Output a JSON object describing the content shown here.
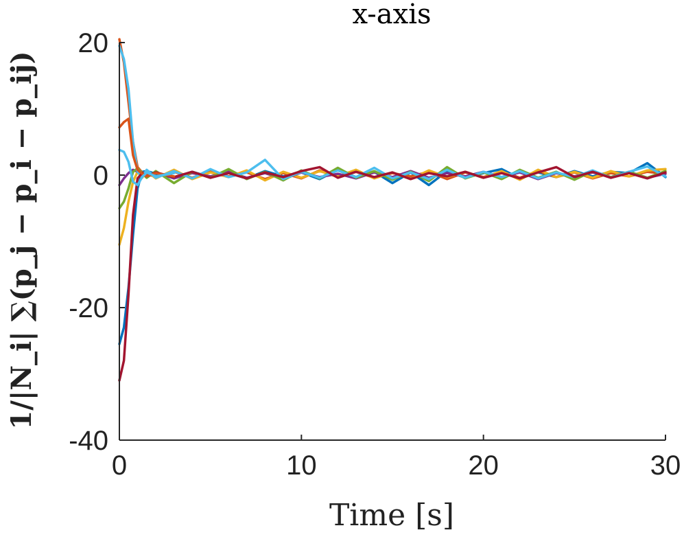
{
  "chart_data": {
    "type": "line",
    "title": "x-axis",
    "xlabel": "Time [s]",
    "ylabel": "1/|N_i| ∑(p_j − p_i − p_ij)",
    "xlim": [
      0,
      30
    ],
    "ylim": [
      -40,
      20
    ],
    "xticks": [
      0,
      10,
      20,
      30
    ],
    "yticks": [
      -40,
      -20,
      0,
      20
    ],
    "xtick_labels": [
      "0",
      "10",
      "20",
      "30"
    ],
    "ytick_labels": [
      "-40",
      "-20",
      "0",
      "20"
    ],
    "grid": false,
    "legend": "none",
    "series": [
      {
        "color": "#0072BD",
        "x": [
          0,
          0.25,
          0.5,
          0.75,
          1.0,
          1.25,
          1.5,
          2.0,
          3,
          4,
          5,
          6,
          7,
          8,
          9,
          10,
          11,
          12,
          13,
          14,
          15,
          16,
          17,
          18,
          19,
          20,
          21,
          22,
          23,
          24,
          25,
          26,
          27,
          28,
          29,
          30
        ],
        "y": [
          -25.5,
          -23,
          -17,
          -9,
          -2,
          0.5,
          0.6,
          0.2,
          -0.4,
          0.5,
          -0.3,
          0.3,
          -0.5,
          0.6,
          -0.2,
          0.4,
          -0.6,
          0.8,
          -0.3,
          0.5,
          -1.2,
          0.4,
          -1.5,
          0.6,
          -0.4,
          0.3,
          0.9,
          -0.5,
          0.4,
          -0.3,
          0.6,
          -0.2,
          0.5,
          0.3,
          1.8,
          -0.3
        ]
      },
      {
        "color": "#D95319",
        "x": [
          0,
          0.25,
          0.5,
          0.75,
          1.0,
          1.25,
          1.5,
          2.0,
          3,
          4,
          5,
          6,
          7,
          8,
          9,
          10,
          11,
          12,
          13,
          14,
          15,
          16,
          17,
          18,
          19,
          20,
          21,
          22,
          23,
          24,
          25,
          26,
          27,
          28,
          29,
          30
        ],
        "y": [
          20.5,
          17,
          11,
          5,
          1.2,
          0.4,
          0.2,
          -0.3,
          0.5,
          -0.4,
          0.6,
          -0.2,
          0.4,
          -0.6,
          0.3,
          -0.5,
          0.7,
          -0.3,
          0.5,
          -0.4,
          0.3,
          -0.2,
          0.5,
          -0.6,
          0.4,
          -0.3,
          0.5,
          -0.4,
          0.6,
          -0.3,
          0.4,
          -0.5,
          0.3,
          -0.2,
          0.5,
          0.2
        ]
      },
      {
        "color": "#EDB120",
        "x": [
          0,
          0.25,
          0.5,
          0.75,
          1.0,
          1.25,
          1.5,
          2.0,
          3,
          4,
          5,
          6,
          7,
          8,
          9,
          10,
          11,
          12,
          13,
          14,
          15,
          16,
          17,
          18,
          19,
          20,
          21,
          22,
          23,
          24,
          25,
          26,
          27,
          28,
          29,
          30
        ],
        "y": [
          -10.5,
          -8,
          -4,
          -1,
          0.5,
          -0.4,
          0.6,
          -0.5,
          0.8,
          -0.6,
          0.4,
          -0.3,
          0.7,
          -0.8,
          0.5,
          -0.4,
          0.6,
          -0.2,
          0.8,
          -0.5,
          0.4,
          -0.6,
          0.7,
          -0.3,
          0.5,
          -0.4,
          0.6,
          -0.7,
          0.8,
          -0.3,
          0.5,
          -0.4,
          0.6,
          -0.2,
          0.7,
          0.9
        ]
      },
      {
        "color": "#7E2F8E",
        "x": [
          0,
          0.25,
          0.5,
          0.75,
          1.0,
          1.25,
          1.5,
          2.0,
          3,
          4,
          5,
          6,
          7,
          8,
          9,
          10,
          11,
          12,
          13,
          14,
          15,
          16,
          17,
          18,
          19,
          20,
          21,
          22,
          23,
          24,
          25,
          26,
          27,
          28,
          29,
          30
        ],
        "y": [
          -1.5,
          -0.5,
          0.3,
          0.8,
          0.5,
          0.2,
          -0.3,
          0.4,
          -0.5,
          0.3,
          -0.2,
          0.5,
          -0.4,
          0.3,
          -0.6,
          0.4,
          -0.3,
          0.2,
          -0.5,
          0.4,
          -0.3,
          0.6,
          -0.4,
          0.3,
          -0.2,
          0.5,
          -0.3,
          0.4,
          -0.6,
          0.3,
          -0.2,
          0.4,
          -0.3,
          0.5,
          -0.4,
          0.2
        ]
      },
      {
        "color": "#77AC30",
        "x": [
          0,
          0.25,
          0.5,
          0.75,
          1.0,
          1.25,
          1.5,
          2.0,
          3,
          4,
          5,
          6,
          7,
          8,
          9,
          10,
          11,
          12,
          13,
          14,
          15,
          16,
          17,
          18,
          19,
          20,
          21,
          22,
          23,
          24,
          25,
          26,
          27,
          28,
          29,
          30
        ],
        "y": [
          -5,
          -4,
          -2,
          0.5,
          1.0,
          0.3,
          -0.4,
          0.6,
          -1.2,
          0.5,
          -0.4,
          0.9,
          -0.6,
          0.5,
          -0.8,
          0.7,
          -0.5,
          1.1,
          -0.4,
          0.6,
          -0.7,
          0.5,
          -0.9,
          1.2,
          -0.5,
          0.4,
          -0.6,
          0.8,
          -0.4,
          0.5,
          -0.7,
          0.6,
          -0.3,
          0.5,
          -0.4,
          0.6
        ]
      },
      {
        "color": "#4DBEEE",
        "x": [
          0,
          0.25,
          0.5,
          0.75,
          1.0,
          1.25,
          1.5,
          2.0,
          3,
          4,
          5,
          6,
          7,
          8,
          9,
          10,
          11,
          12,
          13,
          14,
          15,
          16,
          17,
          18,
          19,
          20,
          21,
          22,
          23,
          24,
          25,
          26,
          27,
          28,
          29,
          30
        ],
        "y": [
          19.5,
          17.5,
          13,
          5,
          0.5,
          -0.3,
          0.8,
          -0.4,
          0.6,
          -0.5,
          0.9,
          -0.3,
          0.4,
          2.3,
          -0.6,
          0.5,
          -0.4,
          0.7,
          -0.3,
          1.1,
          -0.5,
          0.4,
          -0.6,
          0.8,
          -0.4,
          0.5,
          -0.3,
          0.6,
          -0.5,
          0.4,
          -0.3,
          0.7,
          -0.4,
          0.5,
          1.3,
          -0.2
        ]
      },
      {
        "color": "#A2142F",
        "x": [
          0,
          0.25,
          0.5,
          0.75,
          1.0,
          1.25,
          1.5,
          2.0,
          3,
          4,
          5,
          6,
          7,
          8,
          9,
          10,
          11,
          12,
          13,
          14,
          15,
          16,
          17,
          18,
          19,
          20,
          21,
          22,
          23,
          24,
          25,
          26,
          27,
          28,
          29,
          30
        ],
        "y": [
          -31,
          -28,
          -18,
          -6,
          -0.5,
          0.3,
          -0.2,
          0.4,
          -0.3,
          0.5,
          -0.4,
          0.3,
          -0.5,
          0.4,
          -0.3,
          0.6,
          1.2,
          -0.4,
          0.5,
          -0.3,
          0.4,
          -0.6,
          0.3,
          -0.2,
          0.5,
          -0.4,
          0.3,
          -0.5,
          0.4,
          1.2,
          -0.3,
          0.5,
          -0.4,
          0.3,
          -0.5,
          0.4
        ]
      },
      {
        "color": "#D95319",
        "x": [
          0,
          0.25,
          0.5,
          0.75,
          1.0,
          1.25,
          1.5,
          2.0,
          3
        ],
        "y": [
          7.2,
          8.0,
          8.5,
          3,
          0.8,
          0.2,
          -0.2,
          0.3,
          -0.2
        ]
      },
      {
        "color": "#4DBEEE",
        "x": [
          0,
          0.25,
          0.5,
          0.75,
          1.0,
          1.25,
          1.5,
          2.0,
          3
        ],
        "y": [
          3.8,
          3.5,
          2.0,
          -1.0,
          -1.5,
          -0.3,
          0.4,
          -0.2,
          0.3
        ]
      }
    ]
  }
}
